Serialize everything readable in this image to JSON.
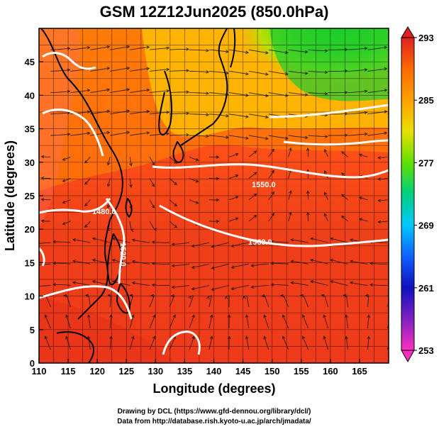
{
  "title": "GSM 12Z12Jun2025 (850.0hPa)",
  "xlabel": "Longitude (degrees)",
  "ylabel": "Latitude  (degrees)",
  "x_ticks": [
    110,
    115,
    120,
    125,
    130,
    135,
    140,
    145,
    150,
    155,
    160,
    165
  ],
  "y_ticks": [
    0,
    5,
    10,
    15,
    20,
    25,
    30,
    35,
    40,
    45
  ],
  "colorbar": {
    "min": 253,
    "max": 293,
    "ticks": [
      293,
      285,
      277,
      269,
      261,
      253
    ]
  },
  "contour_labels": [
    "1550.0",
    "1560.0",
    "1480.0",
    "1520.0"
  ],
  "credits": {
    "line1": "Drawing by DCL (https://www.gfd-dennou.org/library/dcl/)",
    "line2": "Data from http://database.rish.kyoto-u.ac.jp/arch/jmadata/"
  },
  "map_data": {
    "lon_range": [
      110,
      170
    ],
    "lat_range": [
      0,
      50
    ],
    "field": "temperature (K)",
    "temperature_pattern": [
      {
        "region": "northeast (north of ~38N, east of ~140E)",
        "approx_K": 276
      },
      {
        "region": "mid latitudes 30-38N",
        "approx_K": 286
      },
      {
        "region": "subtropics and tropics",
        "approx_K": 291
      }
    ]
  }
}
